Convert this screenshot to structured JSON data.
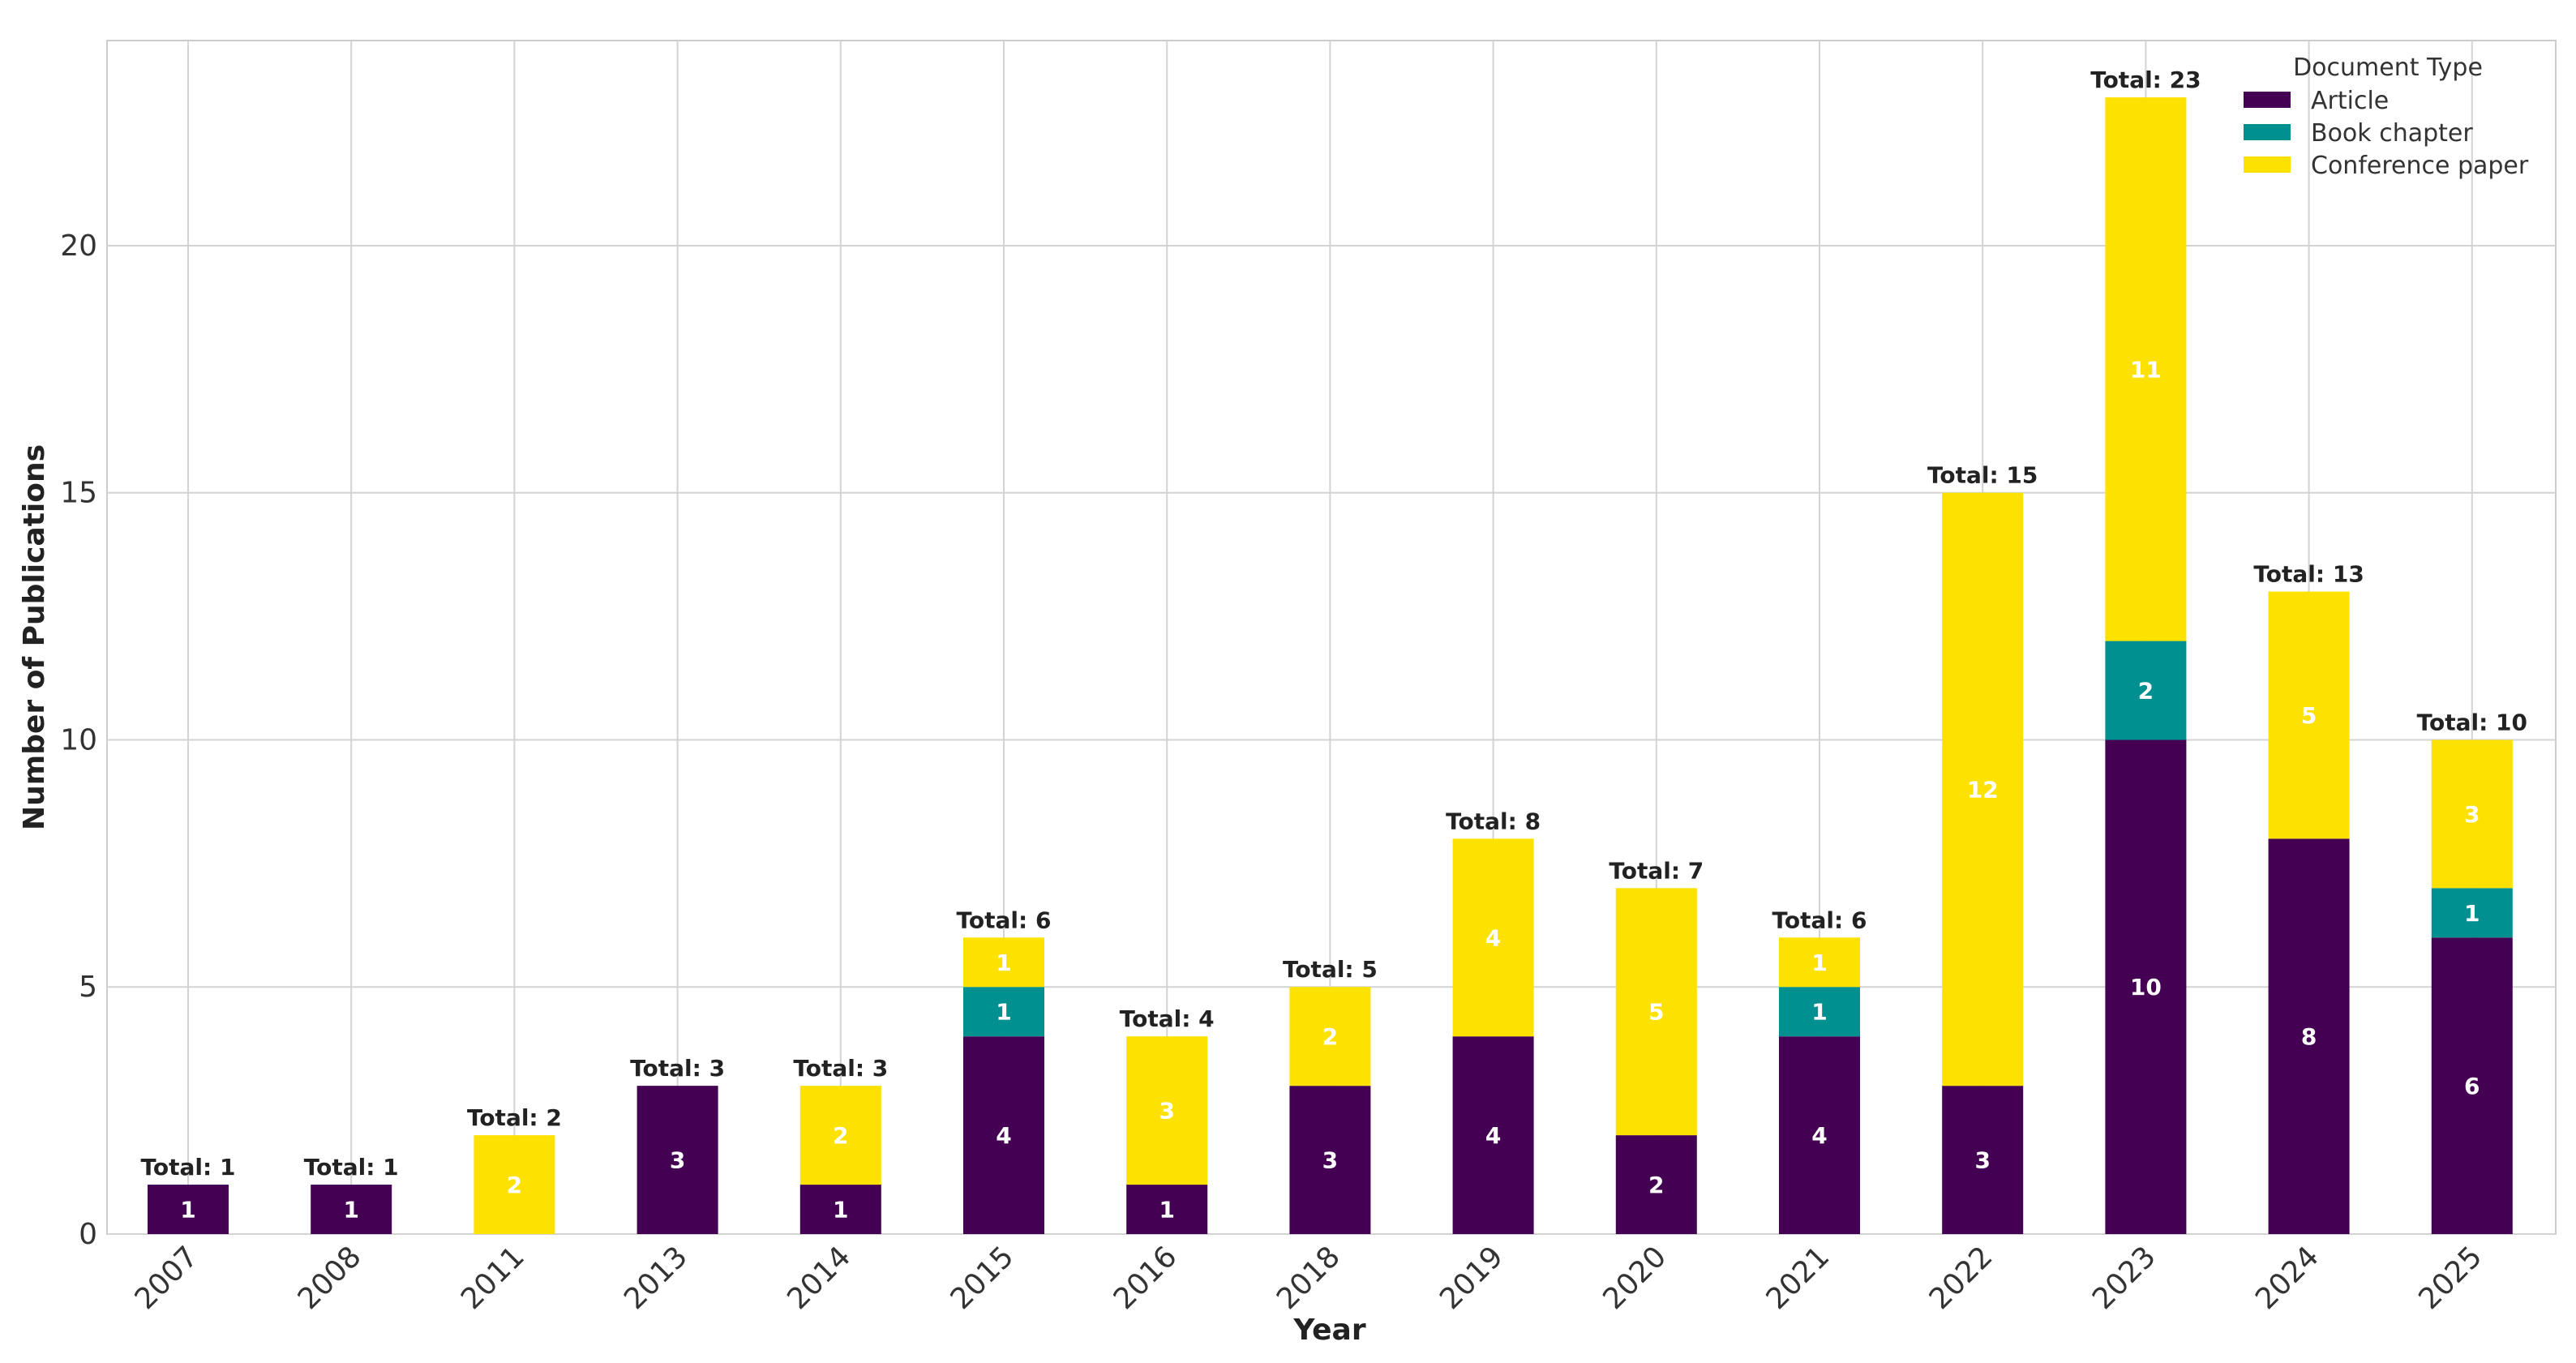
{
  "chart_data": {
    "type": "bar",
    "stacked": true,
    "title": "",
    "xlabel": "Year",
    "ylabel": "Number of Publications",
    "ylim": [
      0,
      24.15
    ],
    "yticks": [
      0,
      5,
      10,
      15,
      20
    ],
    "grid": true,
    "categories": [
      "2007",
      "2008",
      "2011",
      "2013",
      "2014",
      "2015",
      "2016",
      "2018",
      "2019",
      "2020",
      "2021",
      "2022",
      "2023",
      "2024",
      "2025"
    ],
    "series": [
      {
        "name": "Article",
        "color": "#440154",
        "values": [
          1,
          1,
          0,
          3,
          1,
          4,
          1,
          3,
          4,
          2,
          4,
          3,
          10,
          8,
          6
        ]
      },
      {
        "name": "Book chapter",
        "color": "#009090",
        "values": [
          0,
          0,
          0,
          0,
          0,
          1,
          0,
          0,
          0,
          0,
          1,
          0,
          2,
          0,
          1
        ]
      },
      {
        "name": "Conference paper",
        "color": "#FDE100",
        "values": [
          0,
          0,
          2,
          0,
          2,
          1,
          3,
          2,
          4,
          5,
          1,
          12,
          11,
          5,
          3
        ]
      }
    ],
    "totals": [
      1,
      1,
      2,
      3,
      3,
      6,
      4,
      5,
      8,
      7,
      6,
      15,
      23,
      13,
      10
    ],
    "total_prefix": "Total: ",
    "legend": {
      "title": "Document Type",
      "position": "top-right"
    }
  }
}
